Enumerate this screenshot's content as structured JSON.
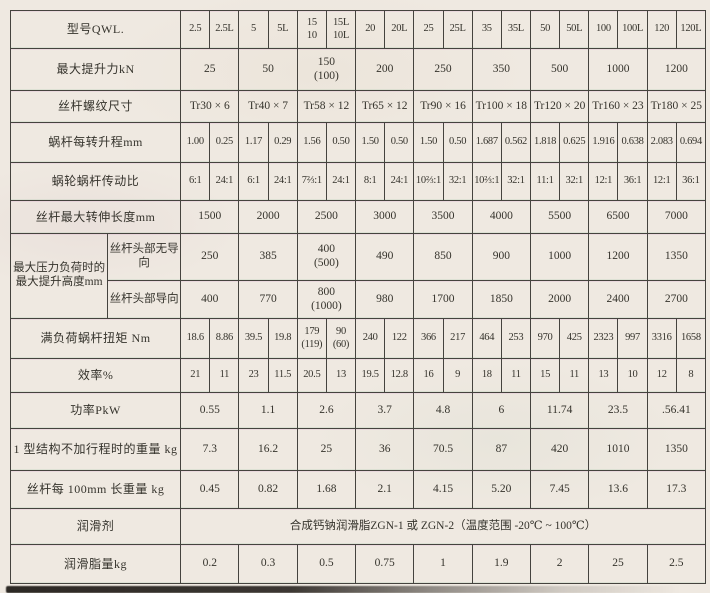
{
  "colors": {
    "paper": "#efe9e1",
    "line": "#45433e",
    "text": "#35332c",
    "scan_bar": "#1c1814"
  },
  "table": {
    "rows": [
      {
        "label": "型号QWL.",
        "dense": true,
        "cells": [
          {
            "t": "2.5"
          },
          {
            "t": "2.5L"
          },
          {
            "t": "5"
          },
          {
            "t": "5L"
          },
          {
            "t": "15\n10"
          },
          {
            "t": "15L\n10L"
          },
          {
            "t": "20"
          },
          {
            "t": "20L"
          },
          {
            "t": "25"
          },
          {
            "t": "25L"
          },
          {
            "t": "35"
          },
          {
            "t": "35L"
          },
          {
            "t": "50"
          },
          {
            "t": "50L"
          },
          {
            "t": "100"
          },
          {
            "t": "100L"
          },
          {
            "t": "120"
          },
          {
            "t": "120L"
          }
        ]
      },
      {
        "label": "最大提升力kN",
        "cells": [
          {
            "t": "25",
            "s": 2
          },
          {
            "t": "50",
            "s": 2
          },
          {
            "t": "150\n(100)",
            "s": 2
          },
          {
            "t": "200",
            "s": 2
          },
          {
            "t": "250",
            "s": 2
          },
          {
            "t": "350",
            "s": 2
          },
          {
            "t": "500",
            "s": 2
          },
          {
            "t": "1000",
            "s": 2
          },
          {
            "t": "1200",
            "s": 2
          }
        ]
      },
      {
        "label": "丝杆螺纹尺寸",
        "cells": [
          {
            "t": "Tr30 × 6",
            "s": 2
          },
          {
            "t": "Tr40 × 7",
            "s": 2
          },
          {
            "t": "Tr58 × 12",
            "s": 2
          },
          {
            "t": "Tr65 × 12",
            "s": 2
          },
          {
            "t": "Tr90 × 16",
            "s": 2
          },
          {
            "t": "Tr100 × 18",
            "s": 2
          },
          {
            "t": "Tr120 × 20",
            "s": 2
          },
          {
            "t": "Tr160 × 23",
            "s": 2
          },
          {
            "t": "Tr180 × 25",
            "s": 2
          }
        ]
      },
      {
        "label": "蜗杆每转升程mm",
        "dense": true,
        "cells": [
          {
            "t": "1.00"
          },
          {
            "t": "0.25"
          },
          {
            "t": "1.17"
          },
          {
            "t": "0.29"
          },
          {
            "t": "1.56"
          },
          {
            "t": "0.50"
          },
          {
            "t": "1.50"
          },
          {
            "t": "0.50"
          },
          {
            "t": "1.50"
          },
          {
            "t": "0.50"
          },
          {
            "t": "1.687"
          },
          {
            "t": "0.562"
          },
          {
            "t": "1.818"
          },
          {
            "t": "0.625"
          },
          {
            "t": "1.916"
          },
          {
            "t": "0.638"
          },
          {
            "t": "2.083"
          },
          {
            "t": "0.694"
          }
        ]
      },
      {
        "label": "蜗轮蜗杆传动比",
        "dense": true,
        "cells": [
          {
            "t": "6:1"
          },
          {
            "t": "24:1"
          },
          {
            "t": "6:1"
          },
          {
            "t": "24:1"
          },
          {
            "t": "7⅔:1"
          },
          {
            "t": "24:1"
          },
          {
            "t": "8:1"
          },
          {
            "t": "24:1"
          },
          {
            "t": "10⅔:1"
          },
          {
            "t": "32:1"
          },
          {
            "t": "10⅔:1"
          },
          {
            "t": "32:1"
          },
          {
            "t": "11:1"
          },
          {
            "t": "32:1"
          },
          {
            "t": "12:1"
          },
          {
            "t": "36:1"
          },
          {
            "t": "12:1"
          },
          {
            "t": "36:1"
          }
        ]
      },
      {
        "label": "丝杆最大转伸长度mm",
        "cells": [
          {
            "t": "1500",
            "s": 2
          },
          {
            "t": "2000",
            "s": 2
          },
          {
            "t": "2500",
            "s": 2
          },
          {
            "t": "3000",
            "s": 2
          },
          {
            "t": "3500",
            "s": 2
          },
          {
            "t": "4000",
            "s": 2
          },
          {
            "t": "5500",
            "s": 2
          },
          {
            "t": "6500",
            "s": 2
          },
          {
            "t": "7000",
            "s": 2
          }
        ]
      },
      {
        "label": "最大压力负荷时的\n最大提升高度mm",
        "labelRowspan": 2,
        "sublabel": "丝杆头部无导向",
        "cells": [
          {
            "t": "250",
            "s": 2
          },
          {
            "t": "385",
            "s": 2
          },
          {
            "t": "400\n(500)",
            "s": 2
          },
          {
            "t": "490",
            "s": 2
          },
          {
            "t": "850",
            "s": 2
          },
          {
            "t": "900",
            "s": 2
          },
          {
            "t": "1000",
            "s": 2
          },
          {
            "t": "1200",
            "s": 2
          },
          {
            "t": "1350",
            "s": 2
          }
        ]
      },
      {
        "sublabel": "丝杆头部导向",
        "cells": [
          {
            "t": "400",
            "s": 2
          },
          {
            "t": "770",
            "s": 2
          },
          {
            "t": "800\n(1000)",
            "s": 2
          },
          {
            "t": "980",
            "s": 2
          },
          {
            "t": "1700",
            "s": 2
          },
          {
            "t": "1850",
            "s": 2
          },
          {
            "t": "2000",
            "s": 2
          },
          {
            "t": "2400",
            "s": 2
          },
          {
            "t": "2700",
            "s": 2
          }
        ]
      },
      {
        "label": "满负荷蜗杆扭矩  Nm",
        "dense": true,
        "cells": [
          {
            "t": "18.6"
          },
          {
            "t": "8.86"
          },
          {
            "t": "39.5"
          },
          {
            "t": "19.8"
          },
          {
            "t": "179\n(119)"
          },
          {
            "t": "90\n(60)"
          },
          {
            "t": "240"
          },
          {
            "t": "122"
          },
          {
            "t": "366"
          },
          {
            "t": "217"
          },
          {
            "t": "464"
          },
          {
            "t": "253"
          },
          {
            "t": "970"
          },
          {
            "t": "425"
          },
          {
            "t": "2323"
          },
          {
            "t": "997"
          },
          {
            "t": "3316"
          },
          {
            "t": "1658"
          }
        ]
      },
      {
        "label": "效率%",
        "dense": true,
        "cells": [
          {
            "t": "21"
          },
          {
            "t": "11"
          },
          {
            "t": "23"
          },
          {
            "t": "11.5"
          },
          {
            "t": "20.5"
          },
          {
            "t": "13"
          },
          {
            "t": "19.5"
          },
          {
            "t": "12.8"
          },
          {
            "t": "16"
          },
          {
            "t": "9"
          },
          {
            "t": "18"
          },
          {
            "t": "11"
          },
          {
            "t": "15"
          },
          {
            "t": "11"
          },
          {
            "t": "13"
          },
          {
            "t": "10"
          },
          {
            "t": "12"
          },
          {
            "t": "8"
          }
        ]
      },
      {
        "label": "功率PkW",
        "cells": [
          {
            "t": "0.55",
            "s": 2
          },
          {
            "t": "1.1",
            "s": 2
          },
          {
            "t": "2.6",
            "s": 2
          },
          {
            "t": "3.7",
            "s": 2
          },
          {
            "t": "4.8",
            "s": 2
          },
          {
            "t": "6",
            "s": 2
          },
          {
            "t": "11.74",
            "s": 2
          },
          {
            "t": "23.5",
            "s": 2
          },
          {
            "t": ".56.41",
            "s": 2
          }
        ]
      },
      {
        "label": "1 型结构不加行程时的重量 kg",
        "cells": [
          {
            "t": "7.3",
            "s": 2
          },
          {
            "t": "16.2",
            "s": 2
          },
          {
            "t": "25",
            "s": 2
          },
          {
            "t": "36",
            "s": 2
          },
          {
            "t": "70.5",
            "s": 2
          },
          {
            "t": "87",
            "s": 2
          },
          {
            "t": "420",
            "s": 2
          },
          {
            "t": "1010",
            "s": 2
          },
          {
            "t": "1350",
            "s": 2
          }
        ]
      },
      {
        "label": "丝杆每 100mm 长重量 kg",
        "cells": [
          {
            "t": "0.45",
            "s": 2
          },
          {
            "t": "0.82",
            "s": 2
          },
          {
            "t": "1.68",
            "s": 2
          },
          {
            "t": "2.1",
            "s": 2
          },
          {
            "t": "4.15",
            "s": 2
          },
          {
            "t": "5.20",
            "s": 2
          },
          {
            "t": "7.45",
            "s": 2
          },
          {
            "t": "13.6",
            "s": 2
          },
          {
            "t": "17.3",
            "s": 2
          }
        ]
      },
      {
        "label": "润滑剂",
        "cells": [
          {
            "t": "合成钙钠润滑脂ZGN-1 或 ZGN-2（温度范围 -20℃ ~ 100℃）",
            "s": 18
          }
        ]
      },
      {
        "label": "润滑脂量kg",
        "cells": [
          {
            "t": "0.2",
            "s": 2
          },
          {
            "t": "0.3",
            "s": 2
          },
          {
            "t": "0.5",
            "s": 2
          },
          {
            "t": "0.75",
            "s": 2
          },
          {
            "t": "1",
            "s": 2
          },
          {
            "t": "1.9",
            "s": 2
          },
          {
            "t": "2",
            "s": 2
          },
          {
            "t": "25",
            "s": 2
          },
          {
            "t": "2.5",
            "s": 2
          }
        ]
      }
    ]
  }
}
